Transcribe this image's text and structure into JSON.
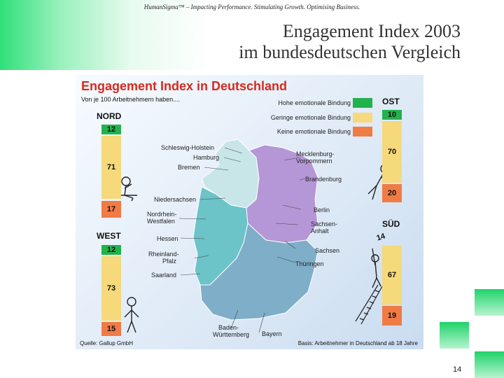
{
  "header": {
    "tagline": "HumanSigma™ – Impacting Performance. Stimulating Growth. Optimising Business.",
    "title_line1": "Engagement Index 2003",
    "title_line2": "im bundesdeutschen Vergleich"
  },
  "figure": {
    "title": "Engagement Index in Deutschland",
    "subtitle": "Von je 100 Arbeitnehmern haben....",
    "legend": [
      {
        "label": "Hohe emotionale Bindung",
        "color": "#22b24c"
      },
      {
        "label": "Geringe emotionale Bindung",
        "color": "#f5d97a"
      },
      {
        "label": "Keine emotionale Bindung",
        "color": "#f07b45"
      }
    ],
    "regions": {
      "nord": {
        "name": "NORD",
        "hoch": "12",
        "gering": "71",
        "keine": "17"
      },
      "west": {
        "name": "WEST",
        "hoch": "12",
        "gering": "73",
        "keine": "15"
      },
      "ost": {
        "name": "OST",
        "hoch": "10",
        "gering": "70",
        "keine": "20"
      },
      "sued": {
        "name": "SÜD",
        "hoch": "14",
        "gering": "67",
        "keine": "19"
      }
    },
    "states": {
      "schleswig_holstein": "Schleswig-Holstein",
      "hamburg": "Hamburg",
      "bremen": "Bremen",
      "niedersachsen": "Niedersachsen",
      "nrw_1": "Nordrhein-",
      "nrw_2": "Westfalen",
      "hessen": "Hessen",
      "rlp_1": "Rheinland-",
      "rlp_2": "Pfalz",
      "saarland": "Saarland",
      "bw_1": "Baden-",
      "bw_2": "Württemberg",
      "bayern": "Bayern",
      "mv_1": "Mecklenburg-",
      "mv_2": "Vorpommern",
      "brandenburg": "Brandenburg",
      "berlin": "Berlin",
      "sa_1": "Sachsen-",
      "sa_2": "Anhalt",
      "sachsen": "Sachsen",
      "thueringen": "Thüringen"
    },
    "source": "Quelle: Gallup GmbH",
    "basis": "Basis: Arbeitnehmer in Deutschland ab 18 Jahre"
  },
  "colors": {
    "hoch": "#22b24c",
    "gering": "#f5d97a",
    "keine": "#f07b45",
    "nord_map": "#c8e6e8",
    "west_map": "#6cc3c8",
    "ost_map": "#b596d6",
    "sued_map": "#7faec8"
  },
  "page_number": "14"
}
